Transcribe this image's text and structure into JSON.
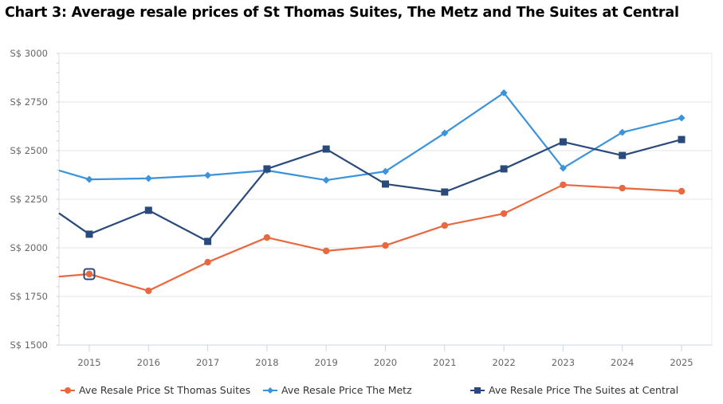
{
  "title": "Chart 3: Average resale prices of St Thomas Suites, The Metz and The Suites at Central",
  "chart_data": {
    "type": "line",
    "title": "Chart 3: Average resale prices of St Thomas Suites, The Metz and The Suites at Central",
    "xlabel": "",
    "ylabel": "",
    "categories": [
      "2015",
      "2016",
      "2017",
      "2018",
      "2019",
      "2020",
      "2021",
      "2022",
      "2023",
      "2024",
      "2025"
    ],
    "ylim": [
      1500,
      3000
    ],
    "yticks": [
      1500,
      1750,
      2000,
      2250,
      2500,
      2750,
      3000
    ],
    "ytick_prefix": "S$ ",
    "grid": true,
    "legend_position": "bottom",
    "series": [
      {
        "name": "Ave Resale Price St Thomas Suites",
        "color": "#E8693F",
        "marker": "circle",
        "left_edge_value": 1852,
        "values": [
          1865,
          1779,
          1926,
          2053,
          1984,
          2012,
          2115,
          2176,
          2324,
          2307,
          2291
        ]
      },
      {
        "name": "Ave Resale Price The Metz",
        "color": "#3A93DB",
        "marker": "diamond",
        "left_edge_value": 2398,
        "values": [
          2352,
          2357,
          2373,
          2398,
          2348,
          2393,
          2590,
          2797,
          2410,
          2594,
          2668
        ]
      },
      {
        "name": "Ave Resale Price The Suites at Central",
        "color": "#2A4A7B",
        "marker": "square",
        "left_edge_value": 2178,
        "values": [
          2070,
          2193,
          2033,
          2406,
          2508,
          2328,
          2287,
          2406,
          2545,
          2475,
          2557
        ]
      }
    ],
    "highlighted_point": {
      "series": "Ave Resale Price St Thomas Suites",
      "category": "2015"
    }
  },
  "legend": [
    {
      "label": "Ave Resale Price St Thomas Suites"
    },
    {
      "label": "Ave Resale Price The Metz"
    },
    {
      "label": "Ave Resale Price The Suites at Central"
    }
  ]
}
